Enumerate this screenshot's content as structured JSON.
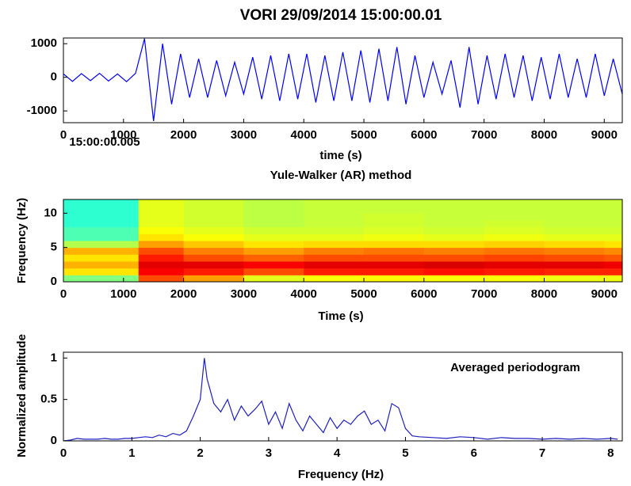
{
  "chart_data": [
    {
      "type": "line",
      "title": "VORI 29/09/2014  15:00:00.01",
      "xlabel": "time (s)",
      "annotation": "15:00:00.005",
      "color": "#0000ff",
      "xlim": [
        0,
        9300
      ],
      "ylim": [
        -1350,
        1170
      ],
      "xticks": [
        0,
        1000,
        2000,
        3000,
        4000,
        5000,
        6000,
        7000,
        8000,
        9000
      ],
      "yticks": [
        -1000,
        0,
        1000
      ],
      "x": [
        0,
        150,
        300,
        450,
        600,
        750,
        900,
        1050,
        1200,
        1350,
        1500,
        1650,
        1800,
        1950,
        2100,
        2250,
        2400,
        2550,
        2700,
        2850,
        3000,
        3150,
        3300,
        3450,
        3600,
        3750,
        3900,
        4050,
        4200,
        4350,
        4500,
        4650,
        4800,
        4950,
        5100,
        5250,
        5400,
        5550,
        5700,
        5850,
        6000,
        6150,
        6300,
        6450,
        6600,
        6750,
        6900,
        7050,
        7200,
        7350,
        7500,
        7650,
        7800,
        7950,
        8100,
        8250,
        8400,
        8550,
        8700,
        8850,
        9000,
        9150,
        9300
      ],
      "values": [
        100,
        -120,
        110,
        -100,
        120,
        -110,
        100,
        -130,
        120,
        1150,
        -1300,
        1000,
        -800,
        700,
        -600,
        550,
        -600,
        500,
        -550,
        450,
        -500,
        600,
        -650,
        650,
        -700,
        700,
        -650,
        700,
        -750,
        650,
        -700,
        750,
        -700,
        800,
        -750,
        850,
        -700,
        900,
        -800,
        650,
        -600,
        450,
        -500,
        500,
        -900,
        900,
        -800,
        650,
        -650,
        700,
        -600,
        650,
        -700,
        600,
        -650,
        700,
        -600,
        550,
        -600,
        700,
        -550,
        550,
        -500
      ]
    },
    {
      "type": "heatmap",
      "title": "Yule-Walker (AR) method",
      "xlabel": "Time (s)",
      "ylabel": "Frequency (Hz)",
      "xlim": [
        0,
        9300
      ],
      "ylim": [
        0,
        12
      ],
      "xticks": [
        0,
        1000,
        2000,
        3000,
        4000,
        5000,
        6000,
        7000,
        8000,
        9000
      ],
      "yticks": [
        0,
        5,
        10
      ],
      "x_edges": [
        0,
        1250,
        2000,
        3000,
        4000,
        5000,
        6000,
        7000,
        8000,
        9000,
        9300
      ],
      "y_edges": [
        0,
        1,
        2,
        3,
        4,
        5,
        6,
        7,
        8,
        9,
        10,
        11,
        12
      ],
      "z": [
        [
          0.5,
          0.65,
          0.7,
          0.65,
          0.7,
          0.55,
          0.45,
          0.45,
          0.42,
          0.42,
          0.42,
          0.42
        ],
        [
          0.8,
          0.88,
          0.9,
          0.85,
          0.8,
          0.72,
          0.65,
          0.62,
          0.6,
          0.6,
          0.6,
          0.6
        ],
        [
          0.72,
          0.85,
          0.9,
          0.8,
          0.75,
          0.68,
          0.62,
          0.6,
          0.58,
          0.58,
          0.58,
          0.58
        ],
        [
          0.6,
          0.8,
          0.88,
          0.78,
          0.72,
          0.65,
          0.6,
          0.58,
          0.56,
          0.56,
          0.56,
          0.56
        ],
        [
          0.62,
          0.85,
          0.9,
          0.8,
          0.75,
          0.66,
          0.6,
          0.58,
          0.57,
          0.57,
          0.57,
          0.57
        ],
        [
          0.63,
          0.85,
          0.9,
          0.8,
          0.76,
          0.66,
          0.61,
          0.59,
          0.58,
          0.58,
          0.57,
          0.57
        ],
        [
          0.62,
          0.86,
          0.91,
          0.8,
          0.75,
          0.66,
          0.6,
          0.58,
          0.57,
          0.57,
          0.57,
          0.57
        ],
        [
          0.62,
          0.85,
          0.9,
          0.81,
          0.76,
          0.67,
          0.61,
          0.59,
          0.58,
          0.57,
          0.57,
          0.57
        ],
        [
          0.61,
          0.84,
          0.9,
          0.8,
          0.75,
          0.66,
          0.6,
          0.58,
          0.57,
          0.57,
          0.57,
          0.57
        ],
        [
          0.61,
          0.84,
          0.89,
          0.79,
          0.74,
          0.65,
          0.6,
          0.58,
          0.57,
          0.57,
          0.57,
          0.57
        ]
      ]
    },
    {
      "type": "line",
      "xlabel": "Frequency (Hz)",
      "ylabel": "Normalized amplitude",
      "annotation": "Averaged periodogram",
      "color": "#2020c0",
      "xlim": [
        0,
        8.17
      ],
      "ylim": [
        0,
        1.07
      ],
      "xticks": [
        0,
        1,
        2,
        3,
        4,
        5,
        6,
        7,
        8
      ],
      "yticks": [
        0,
        0.5,
        1
      ],
      "x": [
        0,
        0.1,
        0.2,
        0.3,
        0.4,
        0.5,
        0.6,
        0.7,
        0.8,
        0.9,
        1.0,
        1.1,
        1.2,
        1.3,
        1.4,
        1.5,
        1.6,
        1.7,
        1.8,
        1.9,
        2.0,
        2.06,
        2.1,
        2.15,
        2.2,
        2.3,
        2.4,
        2.5,
        2.6,
        2.7,
        2.8,
        2.9,
        3.0,
        3.1,
        3.2,
        3.3,
        3.4,
        3.5,
        3.6,
        3.7,
        3.8,
        3.9,
        4.0,
        4.1,
        4.2,
        4.3,
        4.4,
        4.5,
        4.6,
        4.7,
        4.8,
        4.9,
        5.0,
        5.1,
        5.2,
        5.4,
        5.6,
        5.8,
        6.0,
        6.2,
        6.4,
        6.6,
        6.8,
        7.0,
        7.2,
        7.4,
        7.6,
        7.8,
        8.0,
        8.1
      ],
      "values": [
        0,
        0.01,
        0.03,
        0.02,
        0.02,
        0.02,
        0.03,
        0.02,
        0.02,
        0.03,
        0.03,
        0.04,
        0.05,
        0.04,
        0.07,
        0.05,
        0.09,
        0.07,
        0.12,
        0.3,
        0.5,
        1.0,
        0.75,
        0.6,
        0.45,
        0.35,
        0.5,
        0.25,
        0.42,
        0.3,
        0.38,
        0.48,
        0.2,
        0.35,
        0.15,
        0.45,
        0.25,
        0.12,
        0.3,
        0.2,
        0.1,
        0.28,
        0.15,
        0.25,
        0.2,
        0.3,
        0.36,
        0.2,
        0.25,
        0.12,
        0.45,
        0.4,
        0.15,
        0.06,
        0.05,
        0.04,
        0.03,
        0.05,
        0.04,
        0.02,
        0.04,
        0.03,
        0.03,
        0.02,
        0.03,
        0.02,
        0.03,
        0.02,
        0.03,
        0.02
      ]
    }
  ]
}
